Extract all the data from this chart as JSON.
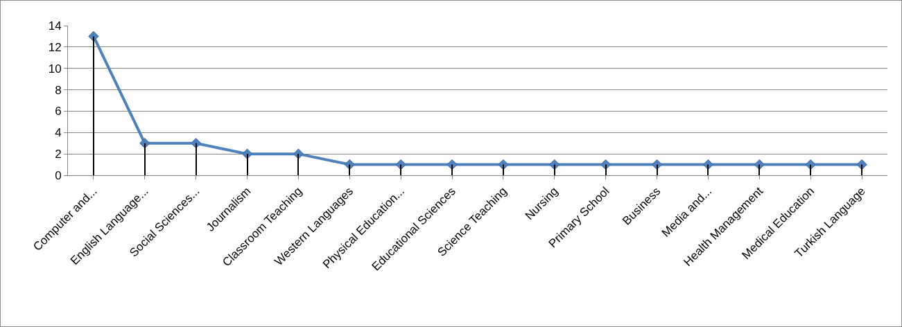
{
  "chart_data": {
    "type": "line",
    "categories": [
      "Computer and...",
      "English Language...",
      "Social Sciences...",
      "Journalism",
      "Classroom Teaching",
      "Western Languages",
      "Physical Education...",
      "Educational Sciences",
      "Science Teaching",
      "Nursing",
      "Primary School",
      "Business",
      "Media and...",
      "Health Management",
      "Medical Education",
      "Turkish Language"
    ],
    "series": [
      {
        "type": "bar",
        "color": "#000000",
        "values": [
          13,
          3,
          3,
          2,
          2,
          1,
          1,
          1,
          1,
          1,
          1,
          1,
          1,
          1,
          1,
          1
        ]
      },
      {
        "color": "#4f81bd",
        "values": [
          13,
          3,
          3,
          2,
          2,
          1,
          1,
          1,
          1,
          1,
          1,
          1,
          1,
          1,
          1,
          1
        ]
      }
    ],
    "ylim": [
      0,
      14
    ],
    "yticks": [
      0,
      2,
      4,
      6,
      8,
      10,
      12,
      14
    ],
    "grid": "y",
    "marker": "diamond",
    "line_style": "solid"
  }
}
